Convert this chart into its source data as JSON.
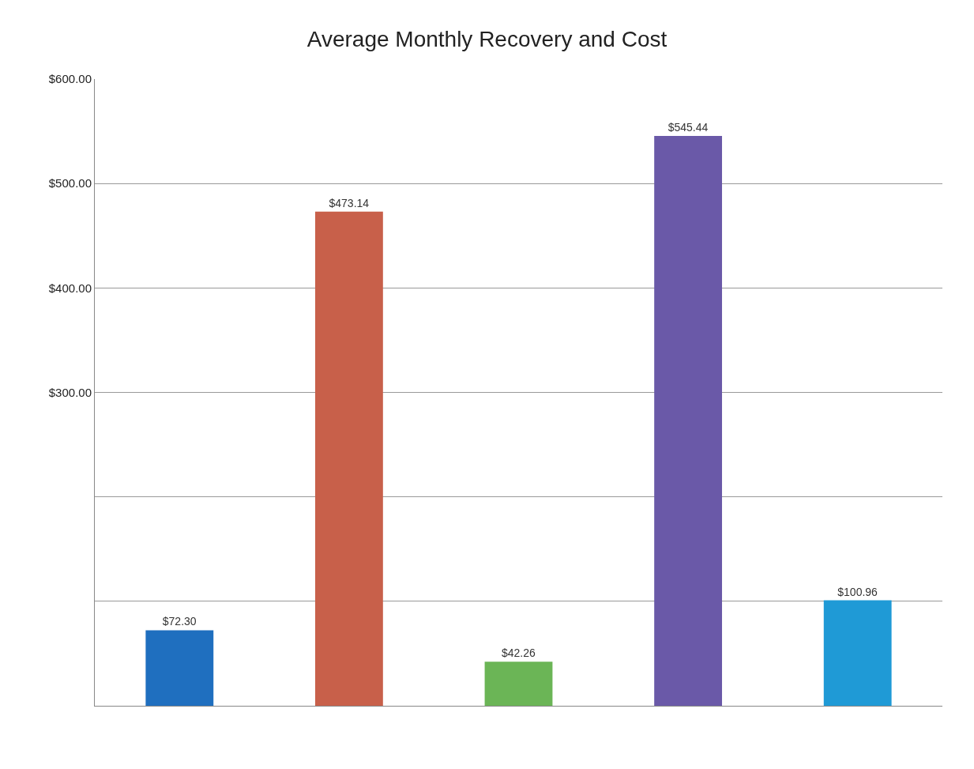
{
  "chart_data": {
    "type": "bar",
    "title": "Average Monthly Recovery and Cost",
    "categories": [
      null,
      null,
      null,
      null,
      null
    ],
    "values": [
      72.3,
      473.14,
      42.26,
      545.44,
      100.96
    ],
    "colors": [
      "#1f6fbf",
      "#c8604a",
      "#6bb556",
      "#6a59a8",
      "#1f9ad6"
    ],
    "value_labels": [
      "$72.30",
      "$473.14",
      "$42.26",
      "$545.44",
      "$100.96"
    ],
    "ylim": [
      0,
      600
    ],
    "yticks": [
      {
        "value": 0,
        "label": null
      },
      {
        "value": 100,
        "label": null
      },
      {
        "value": 200,
        "label": null
      },
      {
        "value": 300,
        "label": "$300.00"
      },
      {
        "value": 400,
        "label": "$400.00"
      },
      {
        "value": 500,
        "label": "$500.00"
      },
      {
        "value": 600,
        "label": "$600.00"
      }
    ],
    "grid": "y",
    "legend": false
  }
}
